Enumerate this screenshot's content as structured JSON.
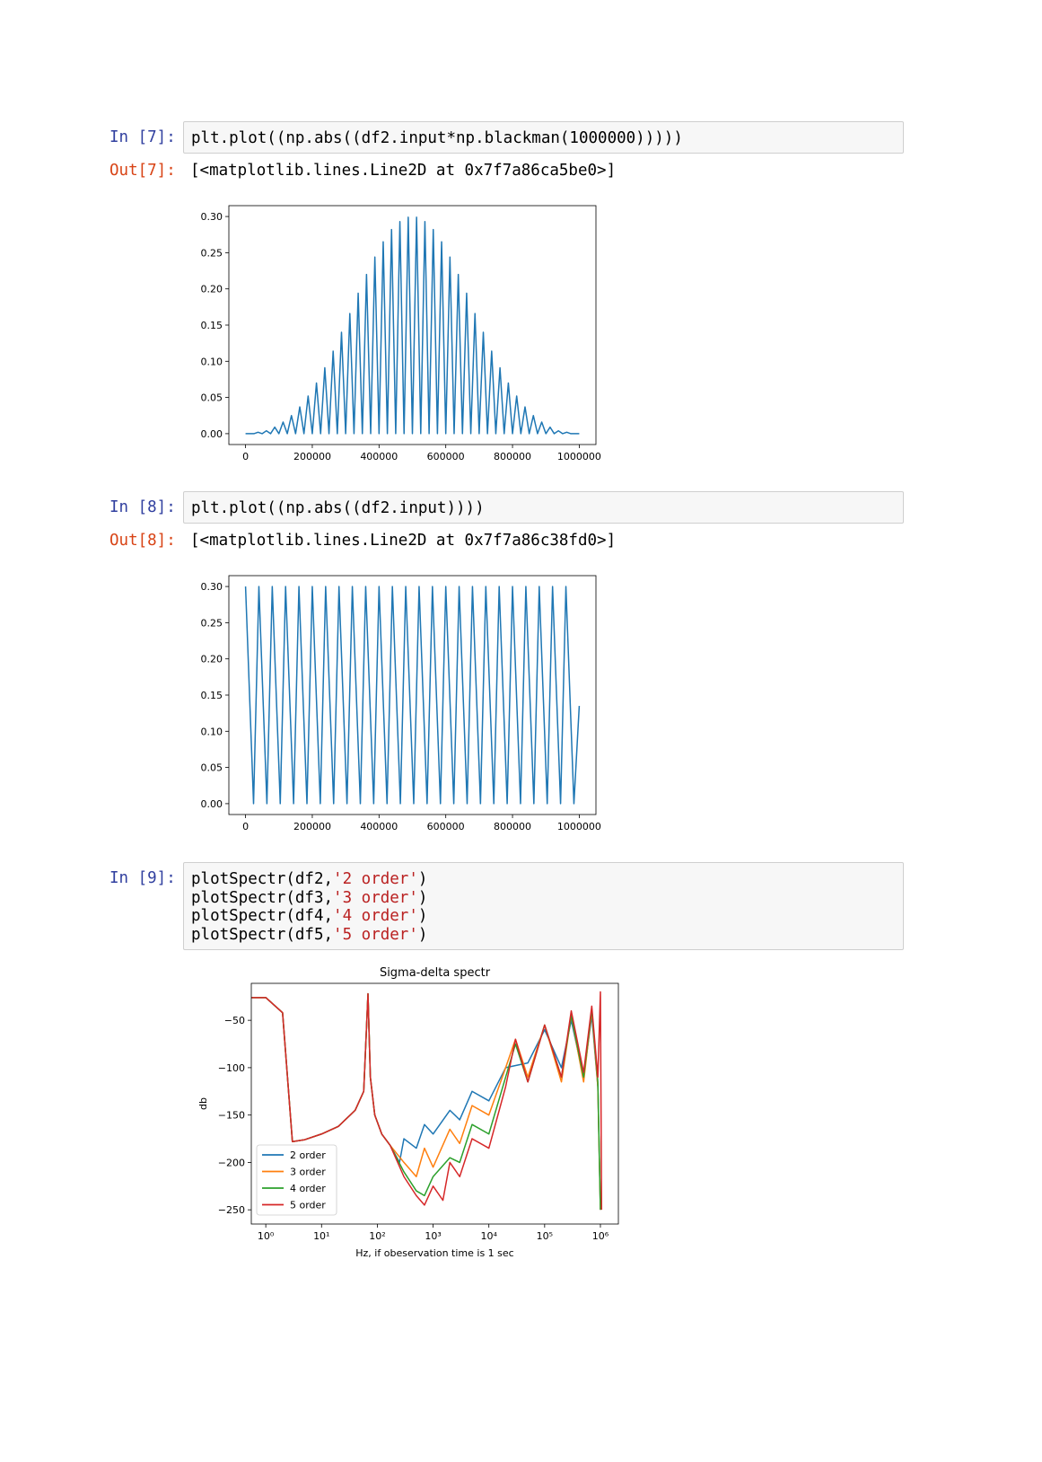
{
  "cells": [
    {
      "prompt_in": "In [7]:",
      "code": [
        [
          "plt.plot((np.abs((df2.input*np.blackman(1000000)))))"
        ]
      ],
      "prompt_out": "Out[7]:",
      "output": "[<matplotlib.lines.Line2D at 0x7f7a86ca5be0>]"
    },
    {
      "prompt_in": "In [8]:",
      "code": [
        [
          "plt.plot((np.abs((df2.input))))"
        ]
      ],
      "prompt_out": "Out[8]:",
      "output": "[<matplotlib.lines.Line2D at 0x7f7a86c38fd0>]"
    },
    {
      "prompt_in": "In [9]:",
      "code": [
        [
          "plotSpectr(df2,",
          "'2 order'",
          ")"
        ],
        [
          "plotSpectr(df3,",
          "'3 order'",
          ")"
        ],
        [
          "plotSpectr(df4,",
          "'4 order'",
          ")"
        ],
        [
          "plotSpectr(df5,",
          "'5 order'",
          ")"
        ]
      ]
    }
  ],
  "chart_data": [
    {
      "type": "line",
      "xlim": [
        -50000,
        1050000
      ],
      "ylim": [
        -0.015,
        0.315
      ],
      "xticks": [
        0,
        200000,
        400000,
        600000,
        800000,
        1000000
      ],
      "yticks": [
        {
          "value": 0,
          "label": "0.00"
        },
        0.05,
        {
          "value": 0.1,
          "label": "0.10"
        },
        0.15,
        {
          "value": 0.2,
          "label": "0.20"
        },
        0.25,
        {
          "value": 0.3,
          "label": "0.30"
        }
      ],
      "series": [
        {
          "color": "#1f77b4",
          "x": [
            0,
            12500,
            25000,
            37500,
            50000,
            62500,
            75000,
            87500,
            100000,
            112500,
            125000,
            137500,
            150000,
            162500,
            175000,
            187500,
            200000,
            212500,
            225000,
            237500,
            250000,
            262500,
            275000,
            287500,
            300000,
            312500,
            325000,
            337500,
            350000,
            362500,
            375000,
            387500,
            400000,
            412500,
            425000,
            437500,
            450000,
            462500,
            475000,
            487500,
            500000,
            512500,
            525000,
            537500,
            550000,
            562500,
            575000,
            587500,
            600000,
            612500,
            625000,
            637500,
            650000,
            662500,
            675000,
            687500,
            700000,
            712500,
            725000,
            737500,
            750000,
            762500,
            775000,
            787500,
            800000,
            812500,
            825000,
            837500,
            850000,
            862500,
            875000,
            887500,
            900000,
            912500,
            925000,
            937500,
            950000,
            962500,
            975000,
            987500,
            1000000
          ],
          "values": [
            0,
            0,
            0,
            0.002,
            0,
            0.004,
            0,
            0.009,
            0,
            0.016,
            0,
            0.025,
            0,
            0.037,
            0,
            0.052,
            0,
            0.07,
            0,
            0.091,
            0,
            0.114,
            0,
            0.14,
            0,
            0.166,
            0,
            0.194,
            0,
            0.22,
            0,
            0.244,
            0,
            0.265,
            0,
            0.282,
            0,
            0.293,
            0,
            0.299,
            0,
            0.299,
            0,
            0.293,
            0,
            0.282,
            0,
            0.265,
            0,
            0.244,
            0,
            0.22,
            0,
            0.194,
            0,
            0.166,
            0,
            0.14,
            0,
            0.114,
            0,
            0.091,
            0,
            0.07,
            0,
            0.052,
            0,
            0.037,
            0,
            0.025,
            0,
            0.016,
            0,
            0.009,
            0,
            0.004,
            0,
            0.002,
            0,
            0,
            0
          ]
        }
      ]
    },
    {
      "type": "line",
      "xlim": [
        -50000,
        1050000
      ],
      "ylim": [
        -0.015,
        0.315
      ],
      "xticks": [
        0,
        200000,
        400000,
        600000,
        800000,
        1000000
      ],
      "yticks": [
        {
          "value": 0,
          "label": "0.00"
        },
        0.05,
        {
          "value": 0.1,
          "label": "0.10"
        },
        0.15,
        {
          "value": 0.2,
          "label": "0.20"
        },
        0.25,
        {
          "value": 0.3,
          "label": "0.30"
        }
      ],
      "series": [
        {
          "color": "#1f77b4",
          "x": [
            0,
            16000,
            24000,
            40000,
            56000,
            64000,
            80000,
            96000,
            104000,
            120000,
            136000,
            144000,
            160000,
            176000,
            184000,
            200000,
            216000,
            224000,
            240000,
            256000,
            264000,
            280000,
            296000,
            304000,
            320000,
            336000,
            344000,
            360000,
            376000,
            384000,
            400000,
            416000,
            424000,
            440000,
            456000,
            464000,
            480000,
            496000,
            504000,
            520000,
            536000,
            544000,
            560000,
            576000,
            584000,
            600000,
            616000,
            624000,
            640000,
            656000,
            664000,
            680000,
            696000,
            704000,
            720000,
            736000,
            744000,
            760000,
            776000,
            784000,
            800000,
            816000,
            824000,
            840000,
            856000,
            864000,
            880000,
            896000,
            904000,
            920000,
            936000,
            944000,
            960000,
            976000,
            984000,
            1000000
          ],
          "values": [
            0.3,
            0.1,
            0,
            0.3,
            0.1,
            0,
            0.3,
            0.1,
            0,
            0.3,
            0.1,
            0,
            0.3,
            0.1,
            0,
            0.3,
            0.1,
            0,
            0.3,
            0.1,
            0,
            0.3,
            0.1,
            0,
            0.3,
            0.1,
            0,
            0.3,
            0.1,
            0,
            0.3,
            0.1,
            0,
            0.3,
            0.1,
            0,
            0.3,
            0.1,
            0,
            0.3,
            0.1,
            0,
            0.3,
            0.1,
            0,
            0.3,
            0.1,
            0,
            0.3,
            0.1,
            0,
            0.3,
            0.1,
            0,
            0.3,
            0.1,
            0,
            0.3,
            0.1,
            0,
            0.3,
            0.1,
            0,
            0.3,
            0.1,
            0,
            0.3,
            0.1,
            0,
            0.3,
            0.1,
            0,
            0.3,
            0.1,
            0,
            0.135
          ]
        }
      ]
    },
    {
      "type": "line",
      "title": "Sigma-delta spectr",
      "xlabel": "Hz, if obeservation time is 1 sec",
      "ylabel": "db",
      "xscale": "log",
      "xlim": [
        0.55,
        2100000
      ],
      "ylim": [
        -265,
        -11
      ],
      "xticks": [
        {
          "value": 1,
          "label": "10⁰"
        },
        {
          "value": 10,
          "label": "10¹"
        },
        {
          "value": 100,
          "label": "10²"
        },
        {
          "value": 1000,
          "label": "10³"
        },
        {
          "value": 10000,
          "label": "10⁴"
        },
        {
          "value": 100000,
          "label": "10⁵"
        },
        {
          "value": 1000000,
          "label": "10⁶"
        }
      ],
      "yticks": [
        {
          "value": -50,
          "label": "−50"
        },
        {
          "value": -100,
          "label": "−100"
        },
        {
          "value": -150,
          "label": "−150"
        },
        {
          "value": -200,
          "label": "−200"
        },
        {
          "value": -250,
          "label": "−250"
        }
      ],
      "legend": "lower left",
      "series": [
        {
          "name": "2 order",
          "color": "#1f77b4",
          "x": [
            0.55,
            1,
            2,
            3,
            5,
            10,
            20,
            40,
            57,
            68,
            75,
            90,
            120,
            170,
            250,
            300,
            500,
            700,
            1000,
            2000,
            3000,
            5000,
            10000,
            20000,
            50000,
            100000,
            200000,
            300000,
            500000,
            700000,
            900000,
            1000000
          ],
          "values": [
            -26,
            -26,
            -42,
            -178,
            -176,
            -170,
            -162,
            -145,
            -125,
            -22,
            -110,
            -150,
            -170,
            -182,
            -200,
            -175,
            -185,
            -160,
            -170,
            -145,
            -155,
            -125,
            -135,
            -100,
            -95,
            -60,
            -100,
            -50,
            -110,
            -45,
            -120,
            -250
          ]
        },
        {
          "name": "3 order",
          "color": "#ff7f0e",
          "x": [
            0.55,
            1,
            2,
            3,
            5,
            10,
            20,
            40,
            57,
            68,
            75,
            90,
            120,
            170,
            300,
            500,
            700,
            1000,
            2000,
            3000,
            5000,
            10000,
            20000,
            30000,
            50000,
            100000,
            200000,
            300000,
            500000,
            700000,
            900000,
            1000000
          ],
          "values": [
            -26,
            -26,
            -42,
            -178,
            -176,
            -170,
            -162,
            -145,
            -125,
            -22,
            -110,
            -150,
            -170,
            -182,
            -200,
            -215,
            -185,
            -205,
            -165,
            -180,
            -140,
            -150,
            -100,
            -70,
            -110,
            -55,
            -115,
            -45,
            -115,
            -40,
            -120,
            -250
          ]
        },
        {
          "name": "4 order",
          "color": "#2ca02c",
          "x": [
            0.55,
            1,
            2,
            3,
            5,
            10,
            20,
            40,
            57,
            68,
            75,
            90,
            120,
            170,
            300,
            500,
            700,
            1000,
            2000,
            3000,
            5000,
            10000,
            20000,
            30000,
            50000,
            100000,
            200000,
            300000,
            500000,
            700000,
            900000,
            1000000
          ],
          "values": [
            -26,
            -26,
            -42,
            -178,
            -176,
            -170,
            -162,
            -145,
            -125,
            -22,
            -110,
            -150,
            -170,
            -182,
            -210,
            -230,
            -235,
            -215,
            -195,
            -200,
            -160,
            -170,
            -110,
            -75,
            -115,
            -55,
            -110,
            -45,
            -110,
            -38,
            -115,
            -250
          ]
        },
        {
          "name": "5 order",
          "color": "#d62728",
          "x": [
            0.55,
            1,
            2,
            3,
            5,
            10,
            20,
            40,
            57,
            68,
            75,
            90,
            120,
            170,
            300,
            500,
            700,
            1000,
            1500,
            2000,
            3000,
            5000,
            10000,
            20000,
            30000,
            50000,
            100000,
            200000,
            300000,
            500000,
            700000,
            900000,
            1000000,
            1050000
          ],
          "values": [
            -26,
            -26,
            -42,
            -178,
            -176,
            -170,
            -162,
            -145,
            -125,
            -22,
            -110,
            -150,
            -170,
            -182,
            -215,
            -235,
            -245,
            -225,
            -240,
            -200,
            -215,
            -175,
            -185,
            -120,
            -70,
            -115,
            -55,
            -110,
            -40,
            -105,
            -35,
            -110,
            -20,
            -250
          ]
        }
      ]
    }
  ]
}
